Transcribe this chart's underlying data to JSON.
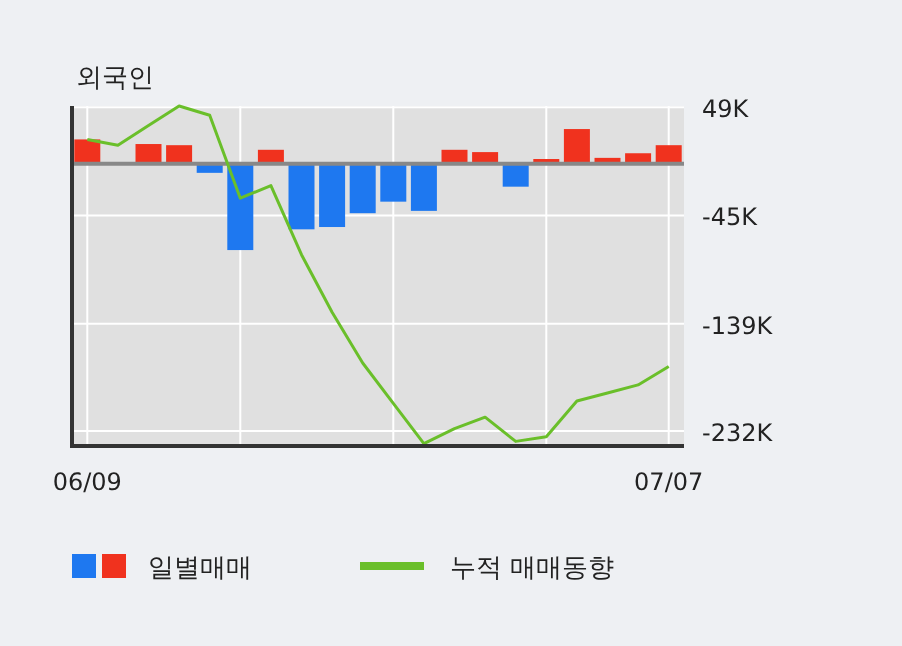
{
  "chart_data": {
    "type": "bar",
    "title": "외국인",
    "categories": [
      "06/09",
      null,
      null,
      null,
      null,
      null,
      null,
      null,
      null,
      null,
      null,
      null,
      null,
      null,
      null,
      null,
      null,
      null,
      null,
      "07/07"
    ],
    "series": [
      {
        "name": "일별매매",
        "values": [
          21,
          null,
          17,
          16,
          -8,
          -75,
          12,
          -57,
          -55,
          -43,
          -33,
          -41,
          12,
          10,
          -20,
          4,
          30,
          5,
          9,
          16
        ],
        "colors": [
          "#f0321e",
          null,
          "#f0321e",
          "#f0321e",
          "#1e78f0",
          "#1e78f0",
          "#f0321e",
          "#1e78f0",
          "#1e78f0",
          "#1e78f0",
          "#1e78f0",
          "#1e78f0",
          "#f0321e",
          "#f0321e",
          "#1e78f0",
          "#f0321e",
          "#f0321e",
          "#f0321e",
          "#f0321e",
          "#f0321e"
        ]
      },
      {
        "name": "누적 매매동향",
        "type": "line",
        "color": "#6abf2a",
        "values": [
          21,
          16,
          33,
          50,
          42,
          -30,
          -19,
          -79,
          -129,
          -173,
          -208,
          -243,
          -230,
          -220,
          -241,
          -237,
          -206,
          -199,
          -192,
          -176
        ]
      }
    ],
    "ylim": [
      -245,
      50
    ],
    "yticks": [
      {
        "value": 49,
        "label": "49K"
      },
      {
        "value": -45,
        "label": "-45K"
      },
      {
        "value": -139,
        "label": "-139K"
      },
      {
        "value": -232,
        "label": "-232K"
      }
    ],
    "grid": true,
    "legend": "bottom"
  }
}
